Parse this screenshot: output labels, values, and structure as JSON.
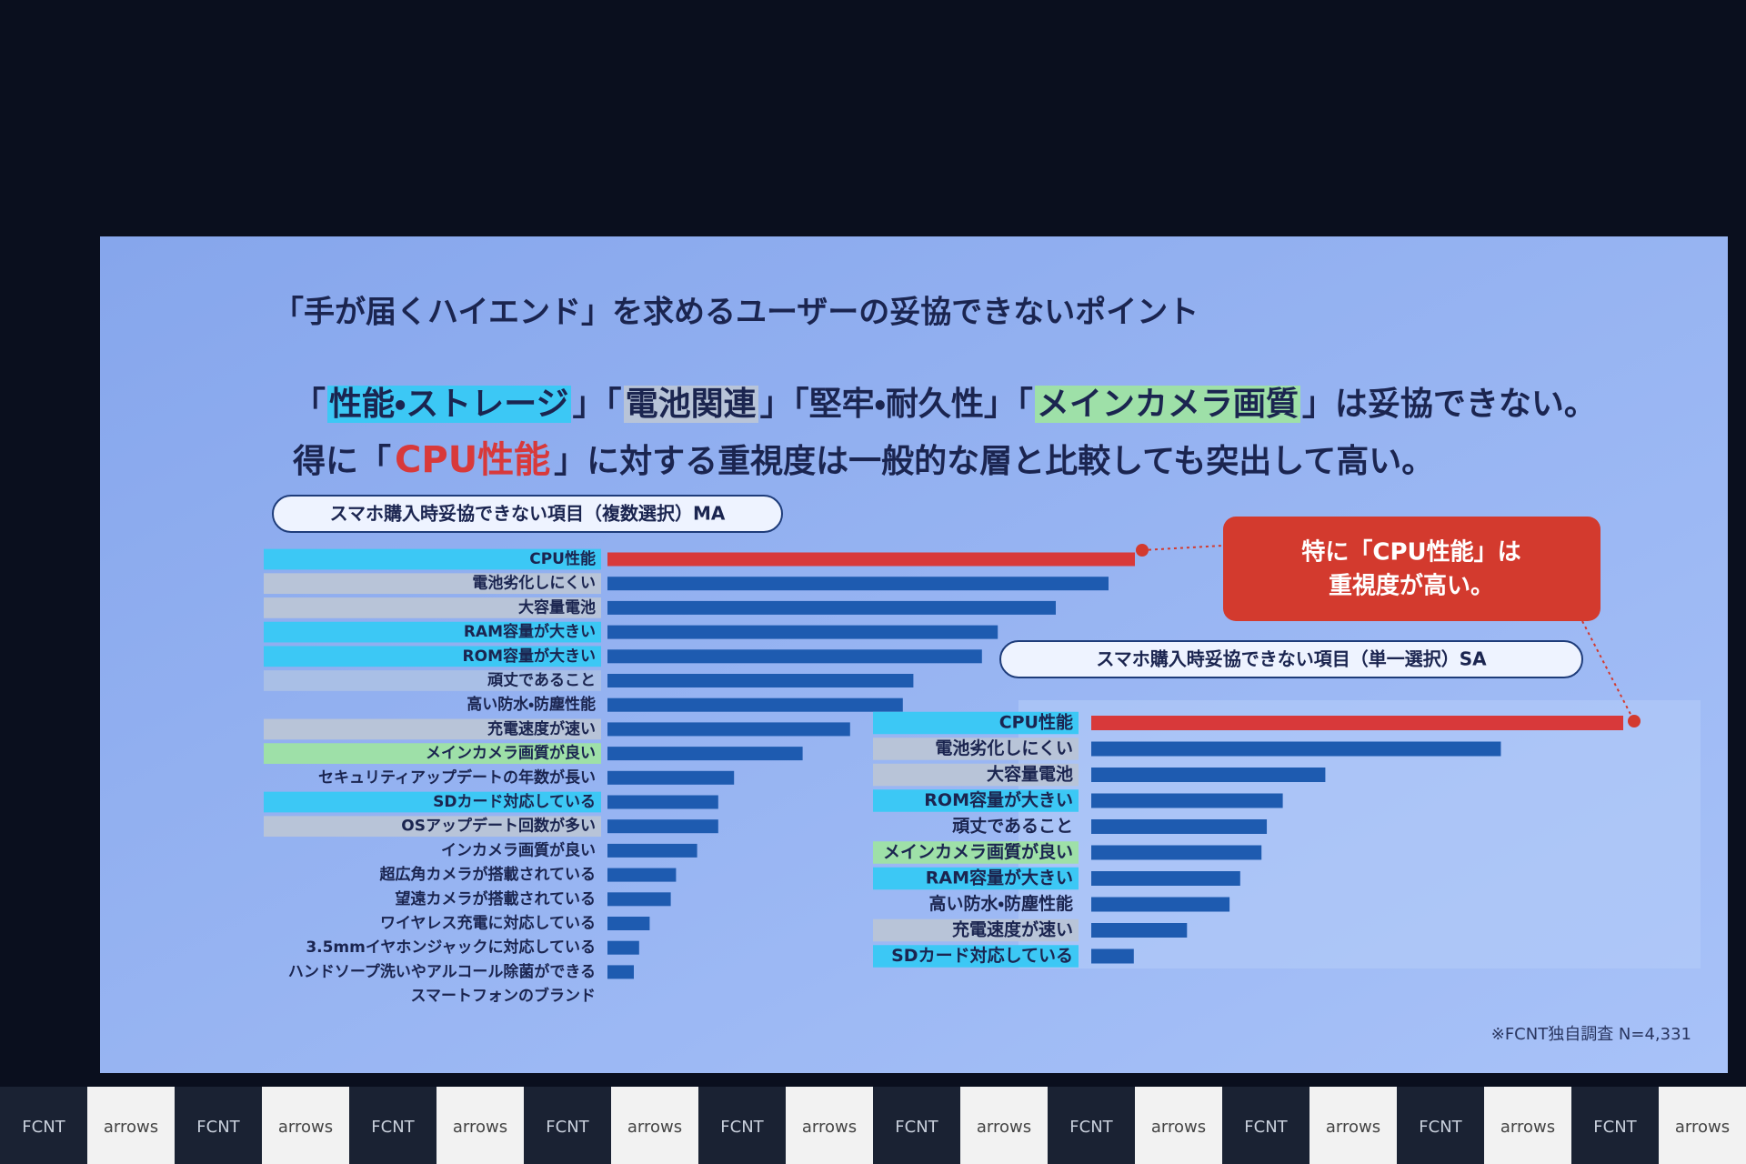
{
  "slide": {
    "title": "「手が届くハイエンド」を求めるユーザーの妥協できないポイント",
    "lines": [
      [
        {
          "text": "「"
        },
        {
          "text": "性能・ストレージ",
          "highlight": "#3cc8f5"
        },
        {
          "text": "」「"
        },
        {
          "text": "電池関連",
          "highlight": "#b8c4d8"
        },
        {
          "text": "」「堅牢・耐久性」「"
        },
        {
          "text": "メインカメラ画質",
          "highlight": "#9ee0a8"
        },
        {
          "text": "」は妥協できない。"
        }
      ],
      [
        {
          "text": "得に「"
        },
        {
          "text": "CPU性能",
          "color": "#d8393a"
        },
        {
          "text": "」に対する重視度は一般的な層と比較しても突出して高い。"
        }
      ]
    ],
    "callout": [
      "特に「CPU性能」は",
      "重視度が高い。"
    ],
    "footnote": "※FCNT独自調査 N=4,331",
    "footer_logos": [
      "FCNT",
      "arrows",
      "FCNT",
      "arrows",
      "FCNT",
      "arrows",
      "FCNT",
      "arrows",
      "FCNT",
      "arrows",
      "FCNT",
      "arrows",
      "FCNT",
      "arrows",
      "FCNT",
      "arrows",
      "FCNT",
      "arrows",
      "FCNT",
      "arrows"
    ]
  },
  "chart_data": [
    {
      "type": "bar",
      "title": "スマホ購入時妥協できない項目（複数選択）MA",
      "categories": [
        "CPU性能",
        "電池劣化しにくい",
        "大容量電池",
        "RAM容量が大きい",
        "ROM容量が大きい",
        "頑丈であること",
        "高い防水・防塵性能",
        "充電速度が速い",
        "メインカメラ画質が良い",
        "セキュリティアップデートの年数が長い",
        "SDカード対応している",
        "OSアップデート回数が多い",
        "インカメラ画質が良い",
        "超広角カメラが搭載されている",
        "望遠カメラが搭載されている",
        "ワイヤレス充電に対応している",
        "3.5mmイヤホンジャックに対応している",
        "ハンドソープ洗いやアルコール除菌ができる",
        "スマートフォンのブランド"
      ],
      "values": [
        100,
        95,
        85,
        74,
        71,
        58,
        56,
        46,
        37,
        24,
        21,
        21,
        17,
        13,
        12,
        8,
        6,
        5,
        0
      ],
      "colors": [
        "#d8393a",
        "#1e5bb0",
        "#1e5bb0",
        "#1e5bb0",
        "#1e5bb0",
        "#1e5bb0",
        "#1e5bb0",
        "#1e5bb0",
        "#1e5bb0",
        "#1e5bb0",
        "#1e5bb0",
        "#1e5bb0",
        "#1e5bb0",
        "#1e5bb0",
        "#1e5bb0",
        "#1e5bb0",
        "#1e5bb0",
        "#1e5bb0",
        "#1e5bb0"
      ],
      "label_highlights": [
        "#3cc8f5",
        "#b8c4d8",
        "#b8c4d8",
        "#3cc8f5",
        "#3cc8f5",
        "#a9bfe6",
        null,
        "#b8c4d8",
        "#9ee0a8",
        null,
        "#3cc8f5",
        "#b8c4d8",
        null,
        null,
        null,
        null,
        null,
        null,
        null
      ],
      "xlim": [
        0,
        100
      ]
    },
    {
      "type": "bar",
      "title": "スマホ購入時妥協できない項目（単一選択）SA",
      "categories": [
        "CPU性能",
        "電池劣化しにくい",
        "大容量電池",
        "ROM容量が大きい",
        "頑丈であること",
        "メインカメラ画質が良い",
        "RAM容量が大きい",
        "高い防水・防塵性能",
        "充電速度が速い",
        "SDカード対応している"
      ],
      "values": [
        100,
        77,
        44,
        36,
        33,
        32,
        28,
        26,
        18,
        8
      ],
      "colors": [
        "#d8393a",
        "#1e5bb0",
        "#1e5bb0",
        "#1e5bb0",
        "#1e5bb0",
        "#1e5bb0",
        "#1e5bb0",
        "#1e5bb0",
        "#1e5bb0",
        "#1e5bb0"
      ],
      "label_highlights": [
        "#3cc8f5",
        "#b8c4d8",
        "#b8c4d8",
        "#3cc8f5",
        null,
        "#9ee0a8",
        "#3cc8f5",
        null,
        "#b8c4d8",
        "#3cc8f5"
      ],
      "xlim": [
        0,
        100
      ]
    }
  ]
}
